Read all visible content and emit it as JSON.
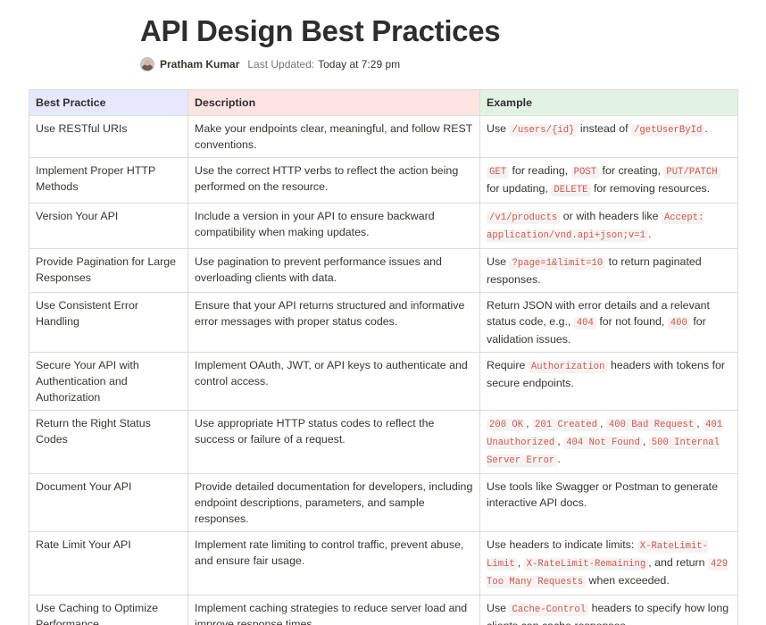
{
  "page": {
    "title": "API Design Best Practices",
    "author": "Pratham Kumar",
    "updated_label": "Last Updated:",
    "updated_value": "Today at 7:29 pm"
  },
  "table": {
    "headers": [
      "Best Practice",
      "Description",
      "Example"
    ],
    "header_colors": [
      "#e6e8fd",
      "#fbe4e2",
      "#e3f3e3"
    ],
    "rows": [
      {
        "practice": "Use RESTful URIs",
        "description": "Make your endpoints clear, meaningful, and follow REST conventions.",
        "example": [
          {
            "t": "Use "
          },
          {
            "c": "/users/{id}"
          },
          {
            "t": " instead of "
          },
          {
            "c": "/getUserById"
          },
          {
            "t": "."
          }
        ]
      },
      {
        "practice": "Implement Proper HTTP Methods",
        "description": "Use the correct HTTP verbs to reflect the action being performed on the resource.",
        "example": [
          {
            "c": "GET"
          },
          {
            "t": " for reading, "
          },
          {
            "c": "POST"
          },
          {
            "t": " for creating, "
          },
          {
            "c": "PUT/PATCH"
          },
          {
            "t": " for updating, "
          },
          {
            "c": "DELETE"
          },
          {
            "t": " for removing resources."
          }
        ]
      },
      {
        "practice": "Version Your API",
        "description": "Include a version in your API to ensure backward compatibility when making updates.",
        "example": [
          {
            "c": "/v1/products"
          },
          {
            "t": " or with headers like "
          },
          {
            "c": "Accept: application/vnd.api+json;v=1"
          },
          {
            "t": "."
          }
        ]
      },
      {
        "practice": "Provide Pagination for Large Responses",
        "description": "Use pagination to prevent performance issues and overloading clients with data.",
        "example": [
          {
            "t": "Use "
          },
          {
            "c": "?page=1&limit=10"
          },
          {
            "t": " to return paginated responses."
          }
        ]
      },
      {
        "practice": "Use Consistent Error Handling",
        "description": "Ensure that your API returns structured and informative error messages with proper status codes.",
        "example": [
          {
            "t": "Return JSON with error details and a relevant status code, e.g., "
          },
          {
            "c": "404"
          },
          {
            "t": " for not found, "
          },
          {
            "c": "400"
          },
          {
            "t": " for validation issues."
          }
        ]
      },
      {
        "practice": "Secure Your API with Authentication and Authorization",
        "description": "Implement OAuth, JWT, or API keys to authenticate and control access.",
        "example": [
          {
            "t": "Require "
          },
          {
            "c": "Authorization"
          },
          {
            "t": " headers with tokens for secure endpoints."
          }
        ]
      },
      {
        "practice": "Return the Right Status Codes",
        "description": "Use appropriate HTTP status codes to reflect the success or failure of a request.",
        "example": [
          {
            "c": "200 OK"
          },
          {
            "t": ", "
          },
          {
            "c": "201 Created"
          },
          {
            "t": ", "
          },
          {
            "c": "400 Bad Request"
          },
          {
            "t": ", "
          },
          {
            "c": "401 Unauthorized"
          },
          {
            "t": ", "
          },
          {
            "c": "404 Not Found"
          },
          {
            "t": ", "
          },
          {
            "c": "500 Internal Server Error"
          },
          {
            "t": "."
          }
        ]
      },
      {
        "practice": "Document Your API",
        "description": "Provide detailed documentation for developers, including endpoint descriptions, parameters, and sample responses.",
        "example": [
          {
            "t": "Use tools like Swagger or Postman to generate interactive API docs."
          }
        ]
      },
      {
        "practice": "Rate Limit Your API",
        "description": "Implement rate limiting to control traffic, prevent abuse, and ensure fair usage.",
        "example": [
          {
            "t": "Use headers to indicate limits: "
          },
          {
            "c": "X-RateLimit-Limit"
          },
          {
            "t": ", "
          },
          {
            "c": "X-RateLimit-Remaining"
          },
          {
            "t": ", and return "
          },
          {
            "c": "429 Too Many Requests"
          },
          {
            "t": " when exceeded."
          }
        ]
      },
      {
        "practice": "Use Caching to Optimize Performance",
        "description": "Implement caching strategies to reduce server load and improve response times.",
        "example": [
          {
            "t": "Use "
          },
          {
            "c": "Cache-Control"
          },
          {
            "t": " headers to specify how long clients can cache responses."
          }
        ]
      }
    ]
  }
}
